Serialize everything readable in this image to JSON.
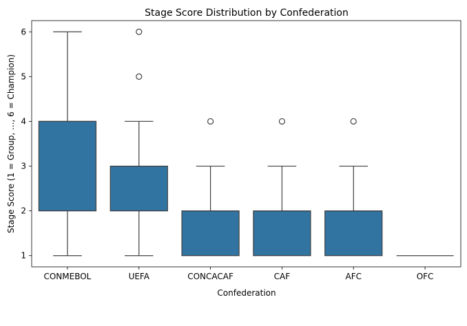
{
  "chart_data": {
    "type": "box",
    "title": "Stage Score Distribution by Confederation",
    "xlabel": "Confederation",
    "ylabel": "Stage Score (1 = Group, ..., 6 = Champion)",
    "ylim": [
      0.75,
      6.25
    ],
    "yticks": [
      "1",
      "2",
      "3",
      "4",
      "5",
      "6"
    ],
    "grid": false,
    "legend": "none",
    "box_color": "#3274a1",
    "line_color": "#3f3f3f",
    "categories": [
      "CONMEBOL",
      "UEFA",
      "CONCACAF",
      "CAF",
      "AFC",
      "OFC"
    ],
    "boxes": [
      {
        "label": "CONMEBOL",
        "whislo": 1,
        "q1": 2,
        "median": 4,
        "q3": 4,
        "whishi": 6,
        "fliers": []
      },
      {
        "label": "UEFA",
        "whislo": 1,
        "q1": 2,
        "median": 3,
        "q3": 3,
        "whishi": 4,
        "fliers": [
          5,
          6
        ]
      },
      {
        "label": "CONCACAF",
        "whislo": 1,
        "q1": 1,
        "median": 2,
        "q3": 2,
        "whishi": 3,
        "fliers": [
          4
        ]
      },
      {
        "label": "CAF",
        "whislo": 1,
        "q1": 1,
        "median": 2,
        "q3": 2,
        "whishi": 3,
        "fliers": [
          4
        ]
      },
      {
        "label": "AFC",
        "whislo": 1,
        "q1": 1,
        "median": 2,
        "q3": 2,
        "whishi": 3,
        "fliers": [
          4
        ]
      },
      {
        "label": "OFC",
        "whislo": 1,
        "q1": 1,
        "median": 1,
        "q3": 1,
        "whishi": 1,
        "fliers": []
      }
    ]
  }
}
